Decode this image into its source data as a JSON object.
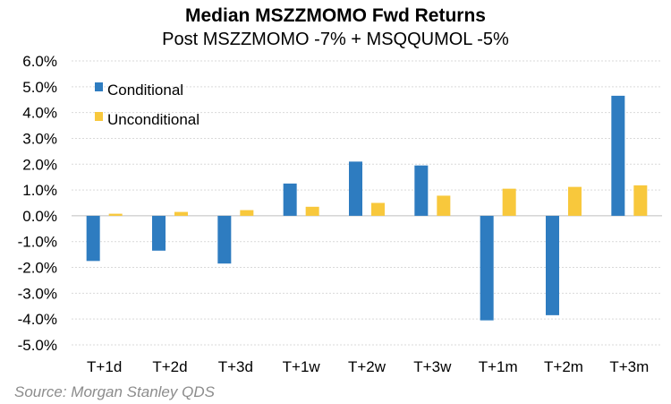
{
  "chart_data": {
    "type": "bar",
    "title": "Median MSZZMOMO Fwd Returns",
    "subtitle": "Post MSZZMOMO -7% + MSQQUMOL -5%",
    "categories": [
      "T+1d",
      "T+2d",
      "T+3d",
      "T+1w",
      "T+2w",
      "T+3w",
      "T+1m",
      "T+2m",
      "T+3m"
    ],
    "series": [
      {
        "name": "Conditional",
        "color": "#2e7cc0",
        "values": [
          -1.75,
          -1.35,
          -1.85,
          1.25,
          2.1,
          1.95,
          -4.05,
          -3.85,
          4.65
        ]
      },
      {
        "name": "Unconditional",
        "color": "#f8c83c",
        "values": [
          0.08,
          0.15,
          0.22,
          0.35,
          0.5,
          0.78,
          1.05,
          1.12,
          1.18
        ]
      }
    ],
    "ylim": [
      -5,
      6
    ],
    "yticks": [
      "6.0%",
      "5.0%",
      "4.0%",
      "3.0%",
      "2.0%",
      "1.0%",
      "0.0%",
      "-1.0%",
      "-2.0%",
      "-3.0%",
      "-4.0%",
      "-5.0%"
    ],
    "xlabel": "",
    "ylabel": "",
    "grid": true,
    "legend_position": "top-left",
    "source": "Source: Morgan Stanley QDS"
  }
}
